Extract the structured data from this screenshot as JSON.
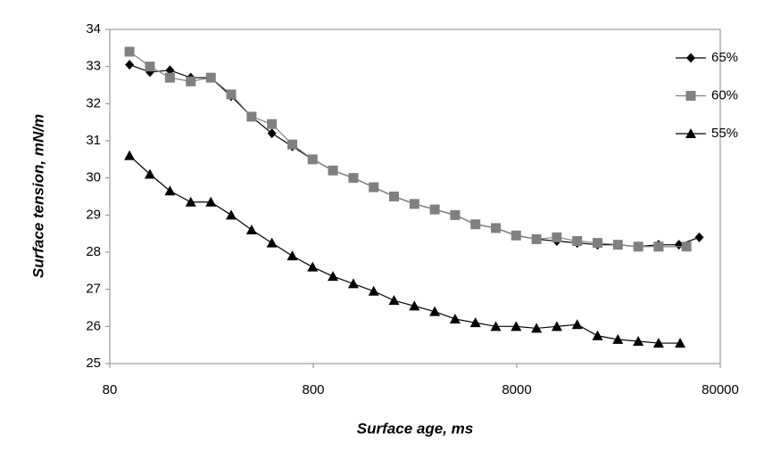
{
  "chart_data": {
    "type": "line",
    "x_label": "Surface age, ms",
    "y_label": "Surface tension, mN/m",
    "xscale": "log",
    "xlim": [
      80,
      80000
    ],
    "xticks": [
      80,
      800,
      8000,
      80000
    ],
    "ylim": [
      25,
      34
    ],
    "yticks": [
      25,
      26,
      27,
      28,
      29,
      30,
      31,
      32,
      33,
      34
    ],
    "legend": "upper right",
    "series": [
      {
        "name": "65%",
        "color": "#000000",
        "marker": "diamond",
        "x": [
          100,
          126,
          158,
          200,
          251,
          316,
          398,
          501,
          631,
          794,
          1000,
          1259,
          1585,
          1995,
          2512,
          3162,
          3981,
          5012,
          6310,
          7943,
          10000,
          12589,
          15849,
          19953,
          25119,
          31623,
          39811,
          50119,
          63096
        ],
        "values": [
          33.05,
          32.85,
          32.9,
          32.7,
          32.7,
          32.2,
          31.65,
          31.2,
          30.85,
          30.5,
          30.2,
          30.0,
          29.75,
          29.5,
          29.3,
          29.15,
          29.0,
          28.75,
          28.65,
          28.45,
          28.35,
          28.3,
          28.25,
          28.2,
          28.2,
          28.15,
          28.2,
          28.2,
          28.4
        ]
      },
      {
        "name": "60%",
        "color": "#808080",
        "marker": "square",
        "x": [
          100,
          126,
          158,
          200,
          251,
          316,
          398,
          501,
          631,
          794,
          1000,
          1259,
          1585,
          1995,
          2512,
          3162,
          3981,
          5012,
          6310,
          7943,
          10000,
          12589,
          15849,
          19953,
          25119,
          31623,
          39811,
          54600
        ],
        "values": [
          33.4,
          33.0,
          32.7,
          32.6,
          32.7,
          32.25,
          31.65,
          31.45,
          30.9,
          30.5,
          30.2,
          30.0,
          29.75,
          29.5,
          29.3,
          29.15,
          29.0,
          28.75,
          28.65,
          28.45,
          28.35,
          28.4,
          28.3,
          28.25,
          28.2,
          28.15,
          28.15,
          28.15
        ]
      },
      {
        "name": "55%",
        "color": "#000000",
        "marker": "triangle",
        "x": [
          100,
          126,
          158,
          200,
          251,
          316,
          398,
          501,
          631,
          794,
          1000,
          1259,
          1585,
          1995,
          2512,
          3162,
          3981,
          5012,
          6310,
          7943,
          10000,
          12589,
          15849,
          19953,
          25119,
          31623,
          39811,
          50800
        ],
        "values": [
          30.6,
          30.1,
          29.65,
          29.35,
          29.35,
          29.0,
          28.6,
          28.25,
          27.9,
          27.6,
          27.35,
          27.15,
          26.95,
          26.7,
          26.55,
          26.4,
          26.2,
          26.1,
          26.0,
          26.0,
          25.95,
          26.0,
          26.05,
          25.75,
          25.65,
          25.6,
          25.55,
          25.55
        ]
      }
    ]
  }
}
